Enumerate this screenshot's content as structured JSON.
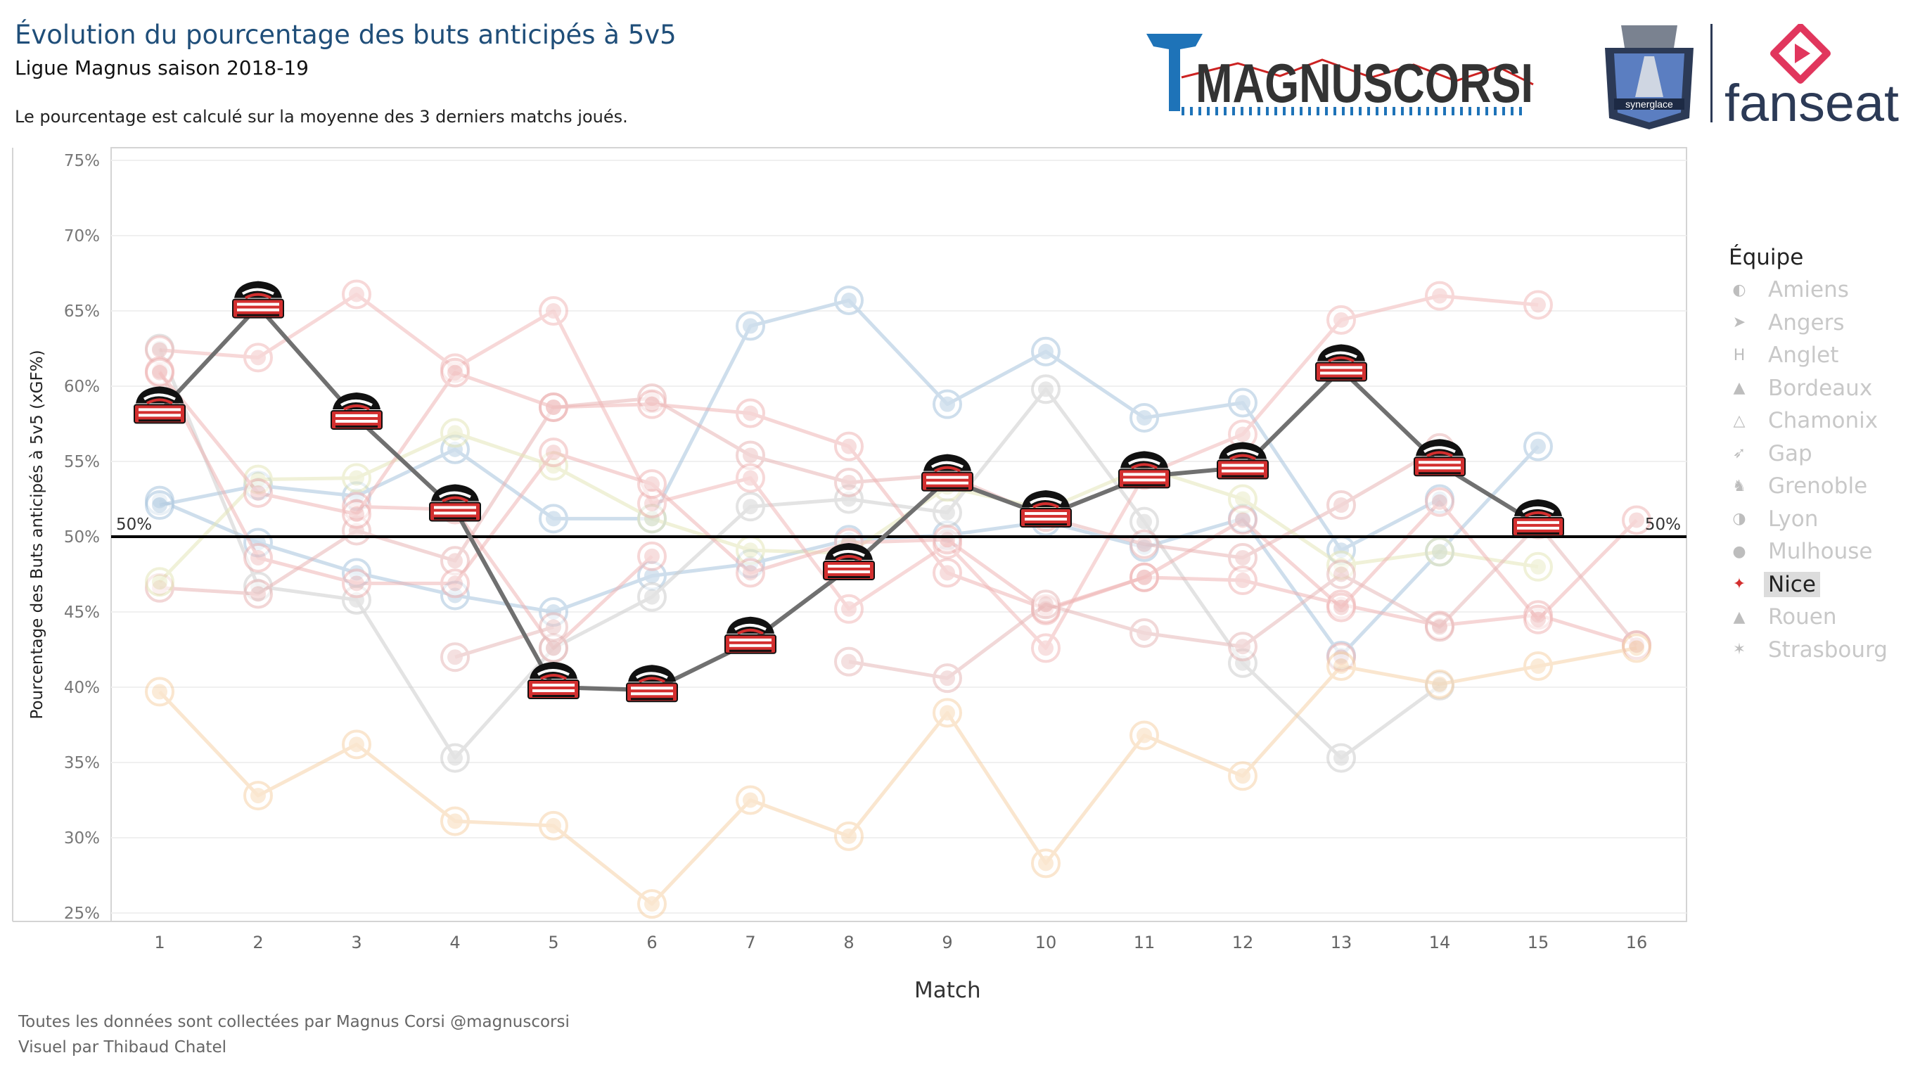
{
  "header": {
    "title": "Évolution du pourcentage des buts anticipés à 5v5",
    "subtitle": "Ligue Magnus saison 2018-19",
    "note": "Le pourcentage est calculé sur la moyenne des 3 derniers matchs joués."
  },
  "logos": {
    "magnuscorsi": "MAGNUSCORSI",
    "fanseat": "fanseat",
    "trophy": "synerglace"
  },
  "footer": {
    "line1": "Toutes les données sont collectées par Magnus Corsi @magnuscorsi",
    "line2": "Visuel par Thibaud Chatel"
  },
  "legend": {
    "title": "Équipe",
    "items": [
      {
        "label": "Amiens",
        "icon": "amiens-logo-icon",
        "active": false
      },
      {
        "label": "Angers",
        "icon": "angers-logo-icon",
        "active": false
      },
      {
        "label": "Anglet",
        "icon": "anglet-logo-icon",
        "active": false
      },
      {
        "label": "Bordeaux",
        "icon": "bordeaux-logo-icon",
        "active": false
      },
      {
        "label": "Chamonix",
        "icon": "chamonix-logo-icon",
        "active": false
      },
      {
        "label": "Gap",
        "icon": "gap-logo-icon",
        "active": false
      },
      {
        "label": "Grenoble",
        "icon": "grenoble-logo-icon",
        "active": false
      },
      {
        "label": "Lyon",
        "icon": "lyon-logo-icon",
        "active": false
      },
      {
        "label": "Mulhouse",
        "icon": "mulhouse-logo-icon",
        "active": false
      },
      {
        "label": "Nice",
        "icon": "nice-logo-icon",
        "active": true
      },
      {
        "label": "Rouen",
        "icon": "rouen-logo-icon",
        "active": false
      },
      {
        "label": "Strasbourg",
        "icon": "strasbourg-logo-icon",
        "active": false
      }
    ]
  },
  "chart_data": {
    "type": "line",
    "xlabel": "Match",
    "ylabel": "Pourcentage des Buts anticipés à 5v5 (xGF%)",
    "x": [
      1,
      2,
      3,
      4,
      5,
      6,
      7,
      8,
      9,
      10,
      11,
      12,
      13,
      14,
      15,
      16
    ],
    "ylim": [
      25,
      75
    ],
    "yticks": [
      "25%",
      "30%",
      "35%",
      "40%",
      "45%",
      "50%",
      "55%",
      "60%",
      "65%",
      "70%",
      "75%"
    ],
    "reference_line": {
      "value": 50,
      "label_left": "50%",
      "label_right": "50%"
    },
    "highlighted_series": "Nice",
    "series": [
      {
        "name": "Nice",
        "color": "#707070",
        "values": [
          58.3,
          65.3,
          57.9,
          51.8,
          40.0,
          39.8,
          43.0,
          47.9,
          53.8,
          51.4,
          54.0,
          54.6,
          61.1,
          54.8,
          50.8,
          null
        ]
      },
      {
        "name": "Amiens",
        "color": "#a6c3dc",
        "values": [
          52.4,
          49.6,
          47.6,
          46.1,
          45.0,
          47.4,
          48.2,
          49.8,
          50.1,
          51.0,
          49.3,
          51.2,
          42.1,
          49.0,
          56.0,
          null
        ]
      },
      {
        "name": "Angers",
        "color": "#a6c3dc",
        "values": [
          52.1,
          53.4,
          52.7,
          55.8,
          51.2,
          51.2,
          64.0,
          65.7,
          58.8,
          62.3,
          57.9,
          58.9,
          49.1,
          52.5,
          null,
          null
        ]
      },
      {
        "name": "Anglet",
        "color": "#cccccc",
        "values": [
          62.5,
          46.7,
          45.8,
          35.3,
          42.6,
          46.0,
          52.0,
          52.5,
          51.6,
          59.8,
          51.0,
          41.6,
          35.3,
          40.1,
          null,
          null
        ]
      },
      {
        "name": "Bordeaux",
        "color": "#e8b4b4",
        "values": [
          46.6,
          46.2,
          50.4,
          48.4,
          58.6,
          59.2,
          55.4,
          53.6,
          54.1,
          51.3,
          49.5,
          48.6,
          52.1,
          55.9,
          null,
          null
        ]
      },
      {
        "name": "Chamonix",
        "color": "#e3e6b8",
        "values": [
          47.0,
          53.8,
          53.9,
          56.9,
          54.7,
          51.2,
          49.1,
          48.9,
          53.3,
          51.8,
          54.6,
          52.5,
          48.1,
          49.0,
          48.0,
          null
        ]
      },
      {
        "name": "Gap",
        "color": "#eeb4b4",
        "values": [
          null,
          null,
          52.0,
          51.8,
          42.6,
          48.7,
          null,
          null,
          null,
          null,
          null,
          null,
          42.0,
          null,
          null,
          null
        ]
      },
      {
        "name": "Grenoble",
        "color": "#f0b8b8",
        "values": [
          62.4,
          61.9,
          66.1,
          61.2,
          65.0,
          52.2,
          53.9,
          45.2,
          49.5,
          42.6,
          54.1,
          56.8,
          64.4,
          66.0,
          65.4,
          null
        ]
      },
      {
        "name": "Lyon",
        "color": "#eeb4b4",
        "values": [
          61.0,
          48.6,
          46.9,
          46.9,
          55.6,
          53.5,
          47.6,
          49.6,
          49.8,
          45.1,
          47.3,
          47.1,
          45.5,
          44.1,
          44.8,
          42.8
        ]
      },
      {
        "name": "Mulhouse",
        "color": "#eeb4b4",
        "values": [
          60.9,
          52.9,
          51.5,
          60.9,
          58.6,
          58.8,
          58.2,
          56.0,
          47.6,
          45.2,
          47.3,
          51.1,
          45.3,
          52.3,
          44.5,
          51.1
        ]
      },
      {
        "name": "Rouen",
        "color": "#e6b8b8",
        "values": [
          null,
          null,
          null,
          42.0,
          44.0,
          null,
          null,
          41.7,
          40.6,
          45.5,
          43.6,
          42.7,
          47.5,
          44.0,
          50.8,
          42.8
        ]
      },
      {
        "name": "Strasbourg",
        "color": "#f6d2a8",
        "values": [
          39.7,
          32.8,
          36.2,
          31.1,
          30.8,
          25.6,
          32.5,
          30.1,
          38.3,
          28.3,
          36.8,
          34.1,
          41.4,
          40.2,
          41.4,
          42.6
        ]
      }
    ]
  }
}
